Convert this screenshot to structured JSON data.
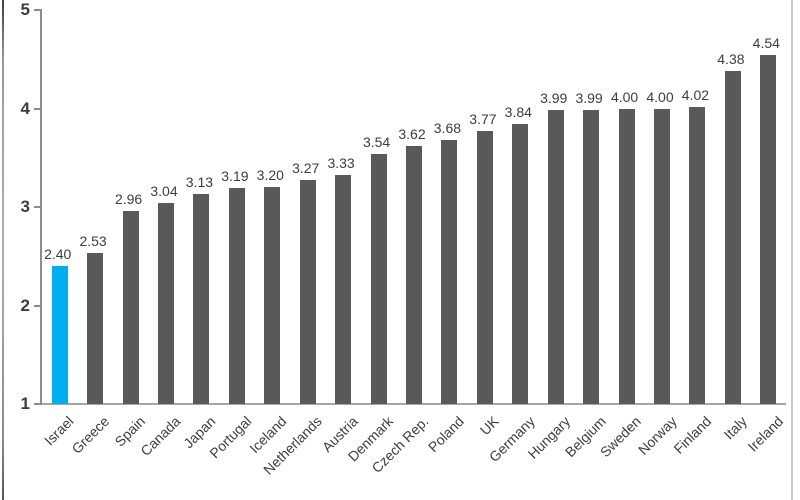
{
  "chart_data": {
    "type": "bar",
    "title": "",
    "xlabel": "",
    "ylabel": "",
    "categories": [
      "Israel",
      "Greece",
      "Spain",
      "Canada",
      "Japan",
      "Portugal",
      "Iceland",
      "Netherlands",
      "Austria",
      "Denmark",
      "Czech Rep.",
      "Poland",
      "UK",
      "Germany",
      "Hungary",
      "Belgium",
      "Sweden",
      "Norway",
      "Finland",
      "Italy",
      "Ireland"
    ],
    "values": [
      2.4,
      2.53,
      2.96,
      3.04,
      3.13,
      3.19,
      3.2,
      3.27,
      3.33,
      3.54,
      3.62,
      3.68,
      3.77,
      3.84,
      3.99,
      3.99,
      4.0,
      4.0,
      4.02,
      4.38,
      4.54
    ],
    "value_labels": [
      "2.40",
      "2.53",
      "2.96",
      "3.04",
      "3.13",
      "3.19",
      "3.20",
      "3.27",
      "3.33",
      "3.54",
      "3.62",
      "3.68",
      "3.77",
      "3.84",
      "3.99",
      "3.99",
      "4.00",
      "4.00",
      "4.02",
      "4.38",
      "4.54"
    ],
    "yticks": [
      "1",
      "2",
      "3",
      "4",
      "5"
    ],
    "ylim": [
      1,
      5
    ],
    "grid": false,
    "legend": "none",
    "highlight_index": 0,
    "colors": {
      "highlight_bar": "#00AEEF",
      "default_bar": "#595959",
      "axis_line": "#8C8C8C",
      "baseline": "#A6A6A6",
      "text": "#3D3D3D",
      "frame_left": "#8C8C8C",
      "frame_right": "#C8C8C8"
    }
  }
}
